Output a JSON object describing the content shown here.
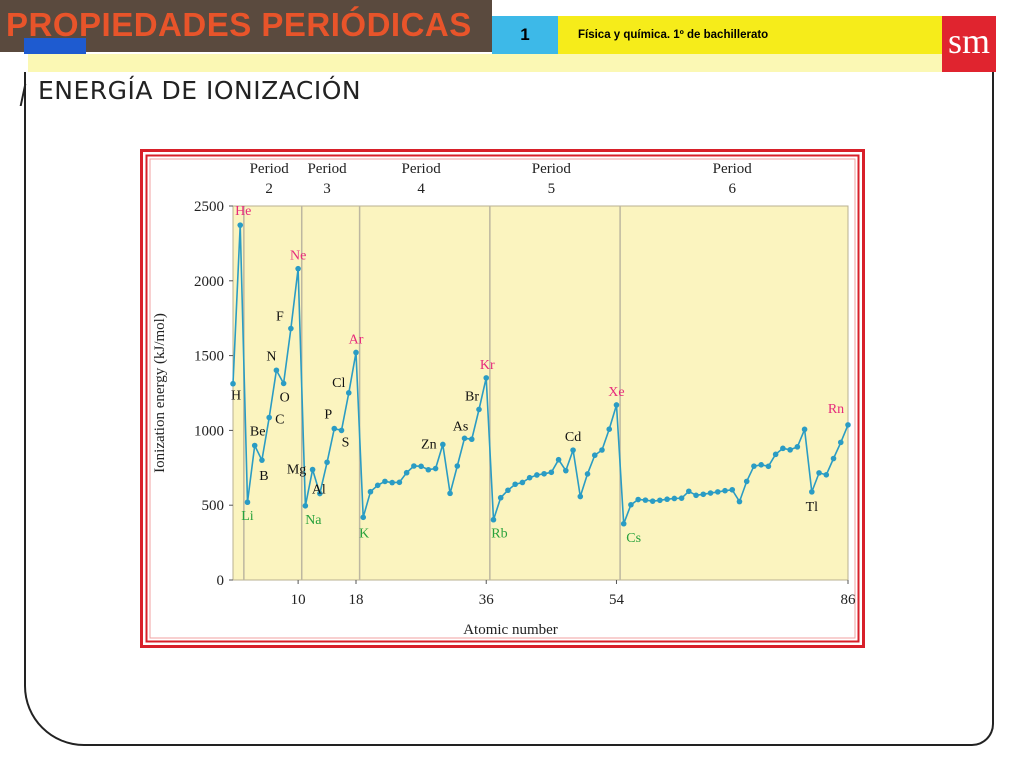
{
  "header": {
    "title": "PROPIEDADES PERIÓDICAS",
    "unit_number": "1",
    "subject": "Física y química. 1º de bachillerato",
    "logo": "sm"
  },
  "section_title": "ENERGÍA DE IONIZACIÓN",
  "colors": {
    "title_bg": "#5a4a3e",
    "title_text": "#e8542a",
    "unit_bg": "#3db9e8",
    "subject_bg": "#f6ec1a",
    "logo_bg": "#e0242f",
    "chart_border": "#d8202a",
    "plot_bg": "#fbf4bf",
    "series": "#2a9cc4",
    "noble_label": "#e62a7c",
    "alkali_label": "#28a23c",
    "other_label": "#111111"
  },
  "chart_data": {
    "type": "line",
    "title": "",
    "xlabel": "Atomic number",
    "ylabel": "Ionization energy (kJ/mol)",
    "xlim": [
      1,
      86
    ],
    "ylim": [
      0,
      2500
    ],
    "yticks": [
      0,
      500,
      1000,
      1500,
      2000,
      2500
    ],
    "xticks": [
      10,
      18,
      36,
      54,
      86
    ],
    "periods": [
      {
        "label": "Period",
        "number": "2",
        "start": 3,
        "end": 10
      },
      {
        "label": "Period",
        "number": "3",
        "start": 11,
        "end": 18
      },
      {
        "label": "Period",
        "number": "4",
        "start": 19,
        "end": 36
      },
      {
        "label": "Period",
        "number": "5",
        "start": 37,
        "end": 54
      },
      {
        "label": "Period",
        "number": "6",
        "start": 55,
        "end": 86
      }
    ],
    "x": [
      1,
      2,
      3,
      4,
      5,
      6,
      7,
      8,
      9,
      10,
      11,
      12,
      13,
      14,
      15,
      16,
      17,
      18,
      19,
      20,
      21,
      22,
      23,
      24,
      25,
      26,
      27,
      28,
      29,
      30,
      31,
      32,
      33,
      34,
      35,
      36,
      37,
      38,
      39,
      40,
      41,
      42,
      43,
      44,
      45,
      46,
      47,
      48,
      49,
      50,
      51,
      52,
      53,
      54,
      55,
      56,
      57,
      58,
      59,
      60,
      61,
      62,
      63,
      64,
      65,
      66,
      67,
      68,
      69,
      70,
      71,
      72,
      73,
      74,
      75,
      76,
      77,
      78,
      79,
      80,
      81,
      82,
      83,
      84,
      85,
      86
    ],
    "y": [
      1312,
      2372,
      520,
      899,
      801,
      1086,
      1402,
      1314,
      1681,
      2081,
      496,
      738,
      578,
      787,
      1012,
      1000,
      1251,
      1521,
      419,
      590,
      633,
      659,
      651,
      653,
      717,
      762,
      760,
      737,
      745,
      906,
      579,
      762,
      947,
      941,
      1140,
      1351,
      403,
      550,
      600,
      640,
      652,
      684,
      702,
      710,
      720,
      804,
      731,
      868,
      558,
      709,
      834,
      869,
      1008,
      1170,
      376,
      503,
      538,
      534,
      527,
      533,
      540,
      545,
      547,
      593,
      566,
      573,
      581,
      589,
      597,
      603,
      524,
      659,
      761,
      770,
      760,
      840,
      880,
      870,
      890,
      1007,
      589,
      716,
      703,
      812,
      920,
      1037
    ],
    "labels": [
      {
        "text": "H",
        "z": 1,
        "kind": "other"
      },
      {
        "text": "He",
        "z": 2,
        "kind": "noble"
      },
      {
        "text": "Li",
        "z": 3,
        "kind": "alkali"
      },
      {
        "text": "Be",
        "z": 4,
        "kind": "other"
      },
      {
        "text": "B",
        "z": 5,
        "kind": "other"
      },
      {
        "text": "C",
        "z": 6,
        "kind": "other"
      },
      {
        "text": "N",
        "z": 7,
        "kind": "other"
      },
      {
        "text": "O",
        "z": 8,
        "kind": "other"
      },
      {
        "text": "F",
        "z": 9,
        "kind": "other"
      },
      {
        "text": "Ne",
        "z": 10,
        "kind": "noble"
      },
      {
        "text": "Na",
        "z": 11,
        "kind": "alkali"
      },
      {
        "text": "Mg",
        "z": 12,
        "kind": "other"
      },
      {
        "text": "Al",
        "z": 13,
        "kind": "other"
      },
      {
        "text": "P",
        "z": 15,
        "kind": "other"
      },
      {
        "text": "S",
        "z": 16,
        "kind": "other"
      },
      {
        "text": "Cl",
        "z": 17,
        "kind": "other"
      },
      {
        "text": "Ar",
        "z": 18,
        "kind": "noble"
      },
      {
        "text": "K",
        "z": 19,
        "kind": "alkali"
      },
      {
        "text": "Zn",
        "z": 30,
        "kind": "other"
      },
      {
        "text": "As",
        "z": 33,
        "kind": "other"
      },
      {
        "text": "Br",
        "z": 35,
        "kind": "other"
      },
      {
        "text": "Kr",
        "z": 36,
        "kind": "noble"
      },
      {
        "text": "Rb",
        "z": 37,
        "kind": "alkali"
      },
      {
        "text": "Cd",
        "z": 48,
        "kind": "other"
      },
      {
        "text": "Xe",
        "z": 54,
        "kind": "noble"
      },
      {
        "text": "Cs",
        "z": 55,
        "kind": "alkali"
      },
      {
        "text": "Tl",
        "z": 81,
        "kind": "other"
      },
      {
        "text": "Rn",
        "z": 86,
        "kind": "noble"
      }
    ]
  }
}
